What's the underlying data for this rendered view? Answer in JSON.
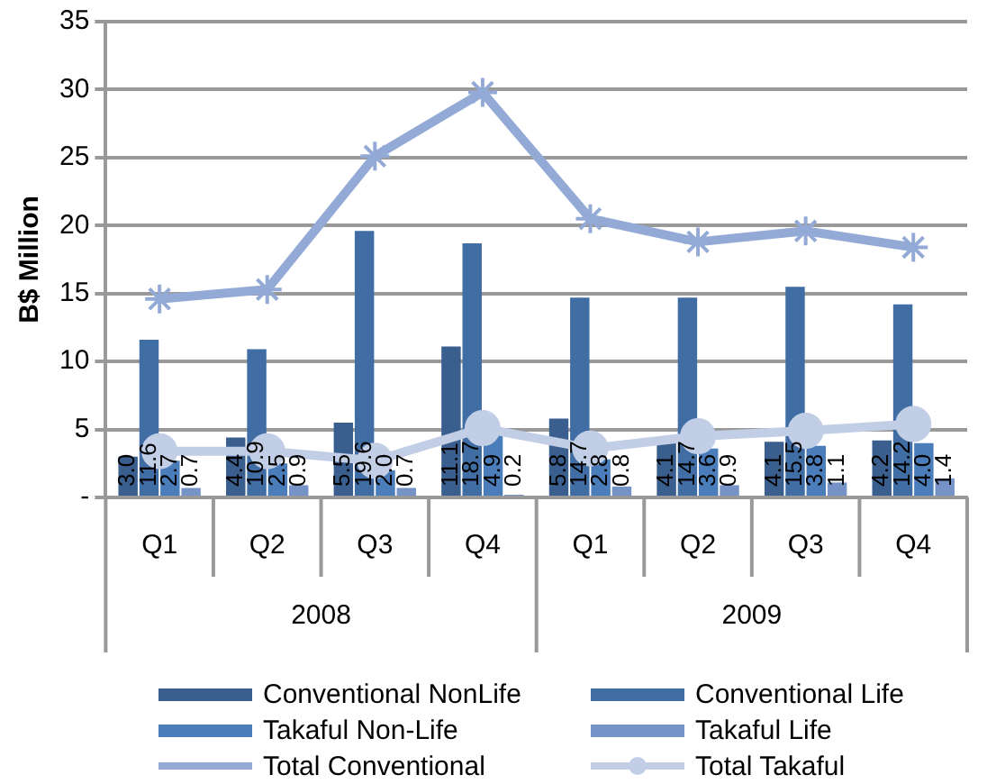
{
  "chart_data": {
    "type": "bar",
    "ylabel": "B$ Million",
    "categories": [
      "Q1",
      "Q2",
      "Q3",
      "Q4",
      "Q1",
      "Q2",
      "Q3",
      "Q4"
    ],
    "annotations": [
      "2008",
      "2009"
    ],
    "series": [
      {
        "name": "Conventional NonLife",
        "color": "#3a5f8f",
        "values": [
          3.0,
          4.4,
          5.5,
          11.1,
          5.8,
          4.1,
          4.1,
          4.2
        ],
        "value_labels": [
          "3.0",
          "4.4",
          "5.5",
          "11.1",
          "5.8",
          "4.1",
          "4.1",
          "4.2"
        ]
      },
      {
        "name": "Conventional Life",
        "color": "#406ea4",
        "values": [
          11.6,
          10.9,
          19.6,
          18.7,
          14.7,
          14.7,
          15.5,
          14.2
        ],
        "value_labels": [
          "11.6",
          "10.9",
          "19.6",
          "18.7",
          "14.7",
          "14.7",
          "15.5",
          "14.2"
        ]
      },
      {
        "name": "Takaful Non-Life",
        "color": "#4a7dba",
        "values": [
          2.7,
          2.5,
          2.0,
          4.9,
          2.8,
          3.6,
          3.8,
          4.0
        ],
        "value_labels": [
          "2.7",
          "2.5",
          "2.0",
          "4.9",
          "2.8",
          "3.6",
          "3.8",
          "4.0"
        ]
      },
      {
        "name": "Takaful Life",
        "color": "#7593c7",
        "values": [
          0.7,
          0.9,
          0.7,
          0.2,
          0.8,
          0.9,
          1.1,
          1.4
        ],
        "value_labels": [
          "0.7",
          "0.9",
          "0.7",
          "0.2",
          "0.8",
          "0.9",
          "1.1",
          "1.4"
        ]
      },
      {
        "name": "Total Conventional",
        "type": "line",
        "marker": "cross",
        "color": "#94aad6",
        "values": [
          14.6,
          15.3,
          25.1,
          29.8,
          20.5,
          18.8,
          19.6,
          18.4
        ]
      },
      {
        "name": "Total Takaful",
        "type": "line",
        "marker": "circle",
        "color": "#c2cee6",
        "values": [
          3.4,
          3.4,
          2.7,
          5.1,
          3.6,
          4.5,
          4.9,
          5.4
        ]
      }
    ],
    "ylim": [
      0,
      35
    ],
    "yticks": [
      {
        "value": 0,
        "label": "-"
      },
      5,
      10,
      15,
      20,
      25,
      30,
      35
    ],
    "grid": "y",
    "legend": "bottom"
  }
}
